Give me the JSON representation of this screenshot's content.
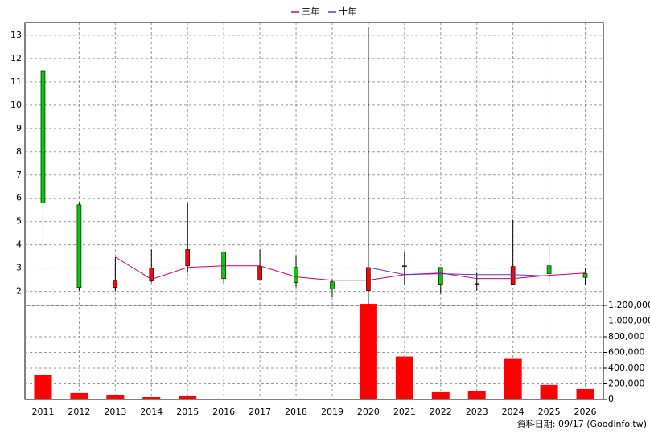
{
  "chart_data": {
    "type": "candlestick",
    "categories": [
      "2011",
      "2012",
      "2013",
      "2014",
      "2015",
      "2016",
      "2017",
      "2018",
      "2019",
      "2020",
      "2021",
      "2022",
      "2023",
      "2024",
      "2025",
      "2026"
    ],
    "candles": {
      "open": [
        11.48,
        5.72,
        2.17,
        2.45,
        3.1,
        3.69,
        2.48,
        3.03,
        2.41,
        2.03,
        3.08,
        3.03,
        2.34,
        2.31,
        3.1,
        2.76
      ],
      "high": [
        11.48,
        5.83,
        3.48,
        3.8,
        5.8,
        3.69,
        3.8,
        3.55,
        2.52,
        13.34,
        3.69,
        3.03,
        2.8,
        5.07,
        3.97,
        3.0
      ],
      "low": [
        4.0,
        2.03,
        2.0,
        2.38,
        2.8,
        2.35,
        2.45,
        2.17,
        1.76,
        1.41,
        2.31,
        1.9,
        2.03,
        2.28,
        2.38,
        2.28
      ],
      "close": [
        5.8,
        2.17,
        2.45,
        3.0,
        3.8,
        2.55,
        3.07,
        2.38,
        2.1,
        3.03,
        3.1,
        2.31,
        2.34,
        3.07,
        2.76,
        2.6
      ],
      "up_color": "#ff0000",
      "down_color": "#00cc00"
    },
    "series": [
      {
        "name": "三年",
        "color": "#cc0066",
        "values": [
          null,
          null,
          3.48,
          2.52,
          3.03,
          3.1,
          3.1,
          2.62,
          2.48,
          2.48,
          2.72,
          2.79,
          2.55,
          2.55,
          2.69,
          2.79
        ]
      },
      {
        "name": "十年",
        "color": "#6633cc",
        "values": [
          null,
          null,
          null,
          null,
          null,
          null,
          null,
          null,
          null,
          3.03,
          2.72,
          2.76,
          2.72,
          2.72,
          2.66,
          2.66
        ]
      }
    ],
    "volume": {
      "color": "#ff0000",
      "axis": "y2",
      "values": [
        310000,
        83000,
        52000,
        31000,
        41000,
        3000,
        10000,
        10000,
        2000,
        1220000,
        548000,
        93000,
        103000,
        517000,
        186000,
        134000
      ]
    },
    "ylim": [
      1.4,
      13.55
    ],
    "yticks": [
      2,
      3,
      4,
      5,
      6,
      7,
      8,
      9,
      10,
      11,
      12,
      13
    ],
    "y2lim": [
      0,
      1200000
    ],
    "y2ticks": [
      0,
      {
        "value": 200000,
        "label": "200,000"
      },
      {
        "value": 400000,
        "label": "400,000"
      },
      {
        "value": 600000,
        "label": "600,000"
      },
      {
        "value": 800000,
        "label": "800,000"
      },
      {
        "value": 1000000,
        "label": "1,000,000"
      },
      {
        "value": 1200000,
        "label": "1,200,000"
      }
    ],
    "grid": true,
    "footnote": "資料日期: 09/17  (Goodinfo.tw)"
  }
}
